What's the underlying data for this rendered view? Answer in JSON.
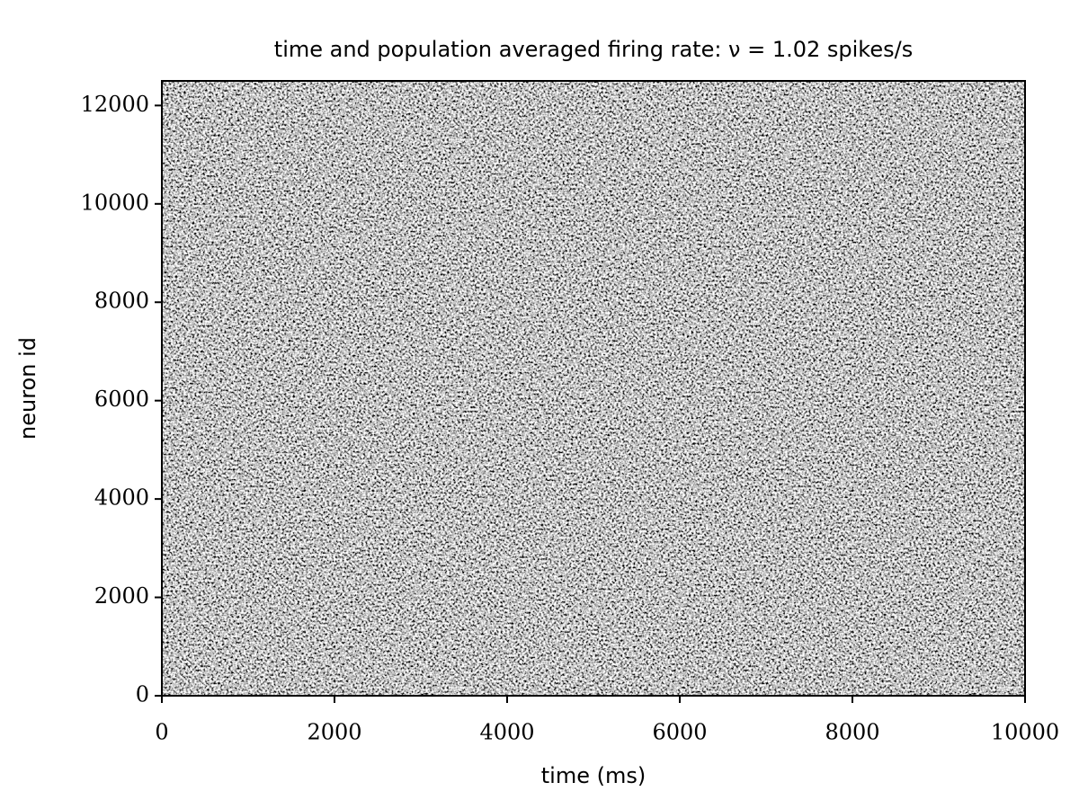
{
  "chart_data": {
    "type": "raster",
    "title": "time and population averaged firing rate: ν = 1.02 spikes/s",
    "xlabel": "time (ms)",
    "ylabel": "neuron id",
    "xlim": [
      0,
      10000
    ],
    "ylim": [
      0,
      12500
    ],
    "xticks": [
      0,
      2000,
      4000,
      6000,
      8000,
      10000
    ],
    "yticks": [
      0,
      2000,
      4000,
      6000,
      8000,
      10000,
      12000
    ],
    "color": "#000000"
  }
}
